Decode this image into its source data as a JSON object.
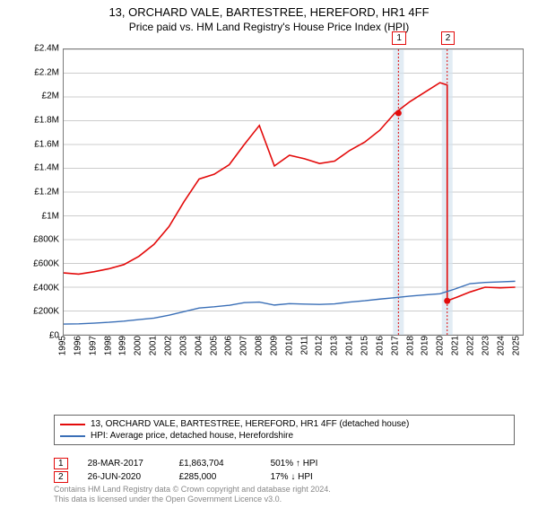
{
  "title": "13, ORCHARD VALE, BARTESTREE, HEREFORD, HR1 4FF",
  "subtitle": "Price paid vs. HM Land Registry's House Price Index (HPI)",
  "chart": {
    "type": "line",
    "background_color": "#ffffff",
    "grid_color": "#cccccc",
    "border_color": "#7b7b7b",
    "x_years": [
      1995,
      1996,
      1997,
      1998,
      1999,
      2000,
      2001,
      2002,
      2003,
      2004,
      2005,
      2006,
      2007,
      2008,
      2009,
      2010,
      2011,
      2012,
      2013,
      2014,
      2015,
      2016,
      2017,
      2018,
      2019,
      2020,
      2021,
      2022,
      2023,
      2024,
      2025
    ],
    "y_ticks": [
      0,
      200000,
      400000,
      600000,
      800000,
      1000000,
      1200000,
      1400000,
      1600000,
      1800000,
      2000000,
      2200000,
      2400000
    ],
    "y_tick_labels": [
      "£0",
      "£200K",
      "£400K",
      "£600K",
      "£800K",
      "£1M",
      "£1.2M",
      "£1.4M",
      "£1.6M",
      "£1.8M",
      "£2M",
      "£2.2M",
      "£2.4M"
    ],
    "ylim": [
      0,
      2400000
    ],
    "xlim": [
      1995,
      2025.5
    ],
    "label_fontsize": 10,
    "series": [
      {
        "name": "13, ORCHARD VALE, BARTESTREE, HEREFORD, HR1 4FF (detached house)",
        "color": "#e30b0b",
        "line_width": 1.6,
        "points": [
          [
            1995,
            520000
          ],
          [
            1996,
            510000
          ],
          [
            1997,
            530000
          ],
          [
            1998,
            555000
          ],
          [
            1999,
            590000
          ],
          [
            2000,
            660000
          ],
          [
            2001,
            760000
          ],
          [
            2002,
            910000
          ],
          [
            2003,
            1120000
          ],
          [
            2004,
            1310000
          ],
          [
            2005,
            1350000
          ],
          [
            2006,
            1430000
          ],
          [
            2007,
            1600000
          ],
          [
            2008,
            1760000
          ],
          [
            2009,
            1420000
          ],
          [
            2010,
            1510000
          ],
          [
            2011,
            1480000
          ],
          [
            2012,
            1440000
          ],
          [
            2013,
            1460000
          ],
          [
            2014,
            1550000
          ],
          [
            2015,
            1620000
          ],
          [
            2016,
            1720000
          ],
          [
            2017,
            1863704
          ],
          [
            2018,
            1960000
          ],
          [
            2019,
            2040000
          ],
          [
            2020,
            2120000
          ],
          [
            2020.48,
            2100000
          ],
          [
            2020.48,
            285000
          ],
          [
            2021,
            310000
          ],
          [
            2022,
            360000
          ],
          [
            2023,
            400000
          ],
          [
            2024,
            395000
          ],
          [
            2025,
            400000
          ]
        ]
      },
      {
        "name": "HPI: Average price, detached house, Herefordshire",
        "color": "#3a6fb7",
        "line_width": 1.4,
        "points": [
          [
            1995,
            90000
          ],
          [
            1996,
            92000
          ],
          [
            1997,
            98000
          ],
          [
            1998,
            105000
          ],
          [
            1999,
            115000
          ],
          [
            2000,
            128000
          ],
          [
            2001,
            140000
          ],
          [
            2002,
            165000
          ],
          [
            2003,
            195000
          ],
          [
            2004,
            225000
          ],
          [
            2005,
            235000
          ],
          [
            2006,
            248000
          ],
          [
            2007,
            270000
          ],
          [
            2008,
            275000
          ],
          [
            2009,
            250000
          ],
          [
            2010,
            262000
          ],
          [
            2011,
            258000
          ],
          [
            2012,
            255000
          ],
          [
            2013,
            260000
          ],
          [
            2014,
            275000
          ],
          [
            2015,
            286000
          ],
          [
            2016,
            300000
          ],
          [
            2017,
            312000
          ],
          [
            2018,
            325000
          ],
          [
            2019,
            335000
          ],
          [
            2020,
            345000
          ],
          [
            2021,
            385000
          ],
          [
            2022,
            430000
          ],
          [
            2023,
            440000
          ],
          [
            2024,
            445000
          ],
          [
            2025,
            450000
          ]
        ]
      }
    ],
    "markers": [
      {
        "id": "1",
        "date_frac": 2017.24,
        "y": 1863704,
        "band_color": "#d6e4f0",
        "line_color": "#e30b0b"
      },
      {
        "id": "2",
        "date_frac": 2020.48,
        "y": 285000,
        "band_color": "#d6e4f0",
        "line_color": "#e30b0b"
      }
    ]
  },
  "legend": {
    "items": [
      {
        "label": "13, ORCHARD VALE, BARTESTREE, HEREFORD, HR1 4FF (detached house)",
        "color": "#e30b0b"
      },
      {
        "label": "HPI: Average price, detached house, Herefordshire",
        "color": "#3a6fb7"
      }
    ]
  },
  "annotations": [
    {
      "badge": "1",
      "date": "28-MAR-2017",
      "amount": "£1,863,704",
      "pct": "501% ↑ HPI"
    },
    {
      "badge": "2",
      "date": "26-JUN-2020",
      "amount": "£285,000",
      "pct": "17% ↓ HPI"
    }
  ],
  "license_line1": "Contains HM Land Registry data © Crown copyright and database right 2024.",
  "license_line2": "This data is licensed under the Open Government Licence v3.0."
}
